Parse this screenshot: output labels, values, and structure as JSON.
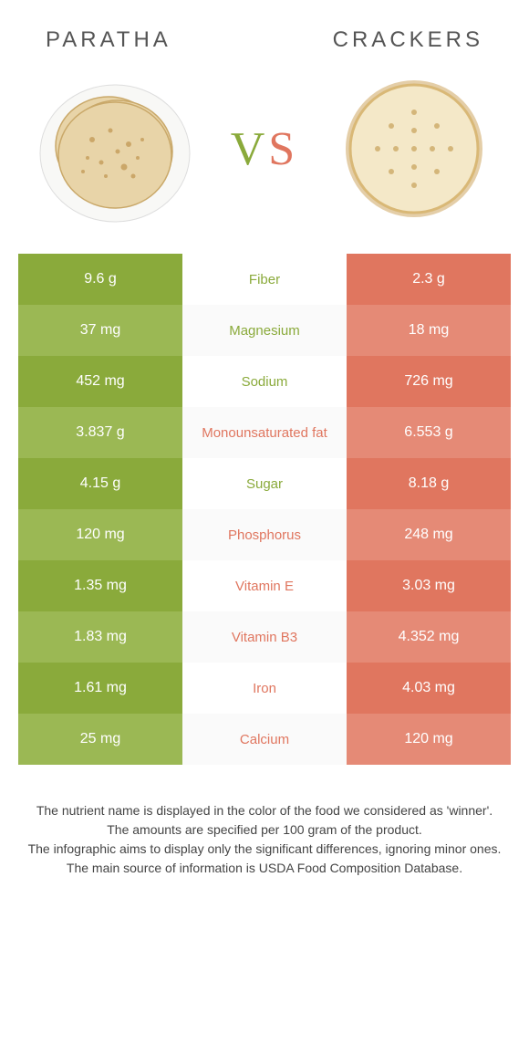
{
  "left_food": "PARATHA",
  "right_food": "CRACKERS",
  "vs": {
    "v": "V",
    "s": "S"
  },
  "colors": {
    "left_a": "#8aaa3b",
    "left_b": "#9bb854",
    "right_a": "#e0765f",
    "right_b": "#e58a76",
    "mid_left": "#8aaa3b",
    "mid_right": "#e0765f"
  },
  "rows": [
    {
      "left": "9.6 g",
      "mid": "Fiber",
      "right": "2.3 g",
      "winner": "left"
    },
    {
      "left": "37 mg",
      "mid": "Magnesium",
      "right": "18 mg",
      "winner": "left"
    },
    {
      "left": "452 mg",
      "mid": "Sodium",
      "right": "726 mg",
      "winner": "left"
    },
    {
      "left": "3.837 g",
      "mid": "Monounsaturated fat",
      "right": "6.553 g",
      "winner": "right"
    },
    {
      "left": "4.15 g",
      "mid": "Sugar",
      "right": "8.18 g",
      "winner": "left"
    },
    {
      "left": "120 mg",
      "mid": "Phosphorus",
      "right": "248 mg",
      "winner": "right"
    },
    {
      "left": "1.35 mg",
      "mid": "Vitamin E",
      "right": "3.03 mg",
      "winner": "right"
    },
    {
      "left": "1.83 mg",
      "mid": "Vitamin B3",
      "right": "4.352 mg",
      "winner": "right"
    },
    {
      "left": "1.61 mg",
      "mid": "Iron",
      "right": "4.03 mg",
      "winner": "right"
    },
    {
      "left": "25 mg",
      "mid": "Calcium",
      "right": "120 mg",
      "winner": "right"
    }
  ],
  "footer": {
    "line1": "The nutrient name is displayed in the color of the food we considered as 'winner'.",
    "line2": "The amounts are specified per 100 gram of the product.",
    "line3": "The infographic aims to display only the significant differences, ignoring minor ones.",
    "line4": "The main source of information is USDA Food Composition Database."
  }
}
